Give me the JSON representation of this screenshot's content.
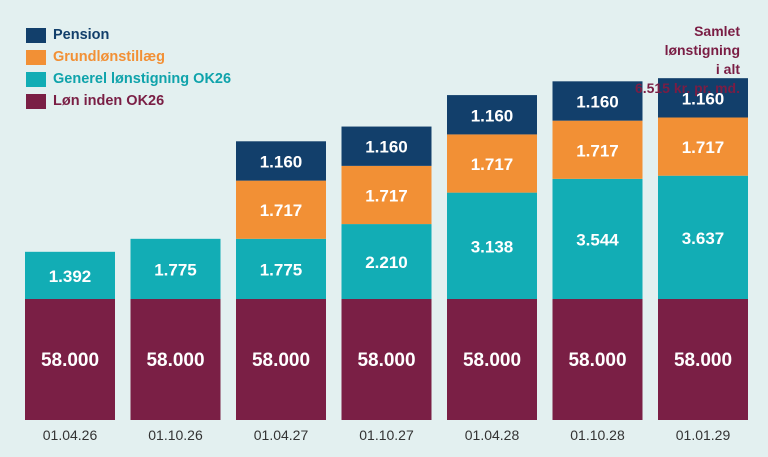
{
  "note": {
    "lines": [
      "Samlet",
      "lønstigning",
      "i alt",
      "6.515 kr. pr. md."
    ]
  },
  "chart_data": {
    "type": "bar",
    "stacked": true,
    "categories": [
      "01.04.26",
      "01.10.26",
      "01.04.27",
      "01.10.27",
      "01.04.28",
      "01.10.28",
      "01.01.29"
    ],
    "series": [
      {
        "name": "Løn inden OK26",
        "color": "#7a1f45",
        "values": [
          58000,
          58000,
          58000,
          58000,
          58000,
          58000,
          58000
        ],
        "labels": [
          "58.000",
          "58.000",
          "58.000",
          "58.000",
          "58.000",
          "58.000",
          "58.000"
        ]
      },
      {
        "name": "Generel lønstigning OK26",
        "color": "#12adb5",
        "values": [
          1392,
          1775,
          1775,
          2210,
          3138,
          3544,
          3637
        ],
        "labels": [
          "1.392",
          "1.775",
          "1.775",
          "2.210",
          "3.138",
          "3.544",
          "3.637"
        ]
      },
      {
        "name": "Grundlønstillæg",
        "color": "#f29035",
        "values": [
          0,
          0,
          1717,
          1717,
          1717,
          1717,
          1717
        ],
        "labels": [
          "",
          "",
          "1.717",
          "1.717",
          "1.717",
          "1.717",
          "1.717"
        ]
      },
      {
        "name": "Pension",
        "color": "#123f6b",
        "values": [
          0,
          0,
          1160,
          1160,
          1160,
          1160,
          1160
        ],
        "labels": [
          "",
          "",
          "1.160",
          "1.160",
          "1.160",
          "1.160",
          "1.160"
        ]
      }
    ],
    "legend_order": [
      "Pension",
      "Grundlønstillæg",
      "Generel lønstigning OK26",
      "Løn inden OK26"
    ],
    "legend_position": "top-left",
    "grid": false
  }
}
